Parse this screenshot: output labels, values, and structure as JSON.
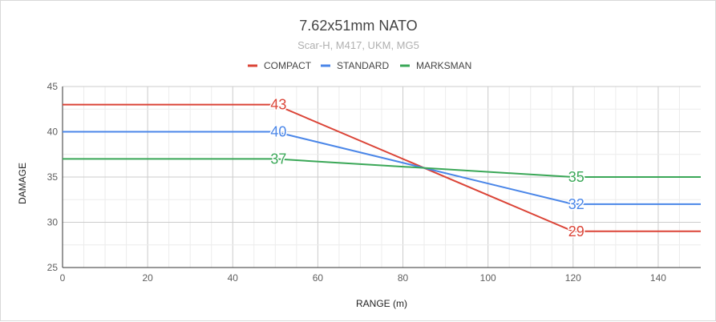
{
  "chart_data": {
    "type": "line",
    "title": "7.62x51mm NATO",
    "subtitle": "Scar-H, M417, UKM, MG5",
    "xlabel": "RANGE (m)",
    "ylabel": "DAMAGE",
    "xlim": [
      0,
      150
    ],
    "ylim": [
      25,
      45
    ],
    "x_ticks": [
      0,
      20,
      40,
      60,
      80,
      100,
      120,
      140
    ],
    "y_ticks": [
      25,
      30,
      35,
      40,
      45
    ],
    "grid": true,
    "legend_position": "top",
    "series": [
      {
        "name": "COMPACT",
        "color": "#db4437",
        "points": [
          [
            0,
            43
          ],
          [
            50,
            43
          ],
          [
            120,
            29
          ],
          [
            150,
            29
          ]
        ],
        "labels": [
          {
            "x": 50,
            "y": 43,
            "text": "43"
          },
          {
            "x": 120,
            "y": 29,
            "text": "29"
          }
        ]
      },
      {
        "name": "STANDARD",
        "color": "#4a86e8",
        "points": [
          [
            0,
            40
          ],
          [
            50,
            40
          ],
          [
            120,
            32
          ],
          [
            150,
            32
          ]
        ],
        "labels": [
          {
            "x": 50,
            "y": 40,
            "text": "40"
          },
          {
            "x": 120,
            "y": 32,
            "text": "32"
          }
        ]
      },
      {
        "name": "MARKSMAN",
        "color": "#3aa757",
        "points": [
          [
            0,
            37
          ],
          [
            50,
            37
          ],
          [
            120,
            35
          ],
          [
            150,
            35
          ]
        ],
        "labels": [
          {
            "x": 50,
            "y": 37,
            "text": "37"
          },
          {
            "x": 120,
            "y": 35,
            "text": "35"
          }
        ]
      }
    ]
  }
}
